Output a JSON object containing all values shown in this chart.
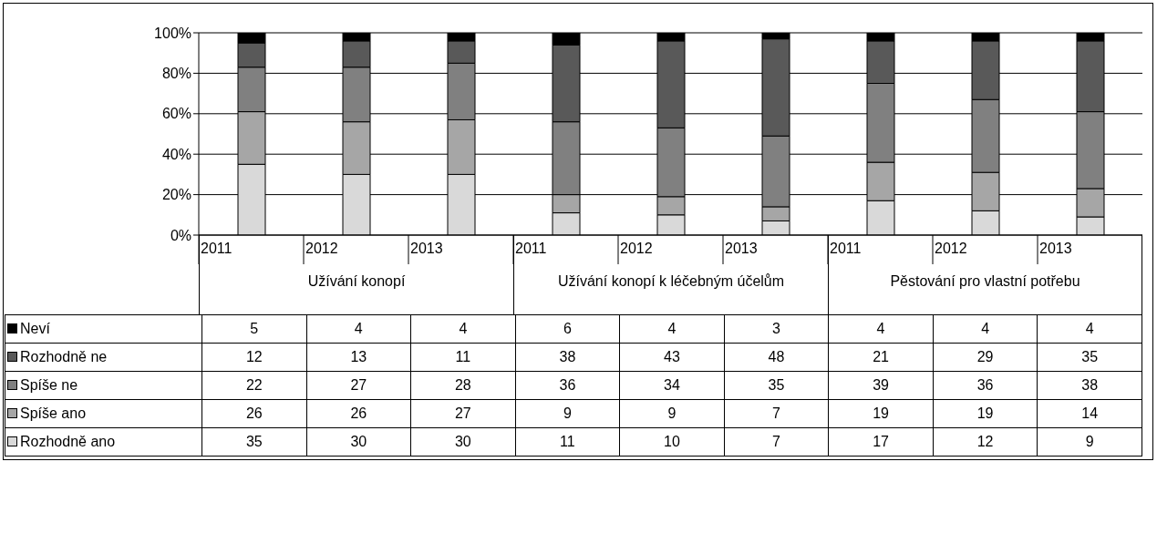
{
  "chart_data": {
    "type": "bar",
    "stacked": true,
    "categories": [
      "2011",
      "2012",
      "2013",
      "2011",
      "2012",
      "2013",
      "2011",
      "2012",
      "2013"
    ],
    "annotations": [
      "Užívání konopí",
      "Užívání konopí k léčebným účelům",
      "Pěstování pro vlastní potřebu"
    ],
    "series": [
      {
        "name": "Rozhodně ano",
        "color": "#d9d9d9",
        "values": [
          35,
          30,
          30,
          11,
          10,
          7,
          17,
          12,
          9
        ]
      },
      {
        "name": "Spíše ano",
        "color": "#a6a6a6",
        "values": [
          26,
          26,
          27,
          9,
          9,
          7,
          19,
          19,
          14
        ]
      },
      {
        "name": "Spíše ne",
        "color": "#808080",
        "values": [
          22,
          27,
          28,
          36,
          34,
          35,
          39,
          36,
          38
        ]
      },
      {
        "name": "Rozhodně ne",
        "color": "#595959",
        "values": [
          12,
          13,
          11,
          38,
          43,
          48,
          21,
          29,
          35
        ]
      },
      {
        "name": "Neví",
        "color": "#000000",
        "values": [
          5,
          4,
          4,
          6,
          4,
          3,
          4,
          4,
          4
        ]
      }
    ],
    "ylim": [
      0,
      100
    ],
    "yticks": [
      {
        "value": 0,
        "label": "0%"
      },
      {
        "value": 20,
        "label": "20%"
      },
      {
        "value": 40,
        "label": "40%"
      },
      {
        "value": 60,
        "label": "60%"
      },
      {
        "value": 80,
        "label": "80%"
      },
      {
        "value": 100,
        "label": "100%"
      }
    ],
    "grid": "y",
    "legend": "left",
    "data_labels": true
  }
}
